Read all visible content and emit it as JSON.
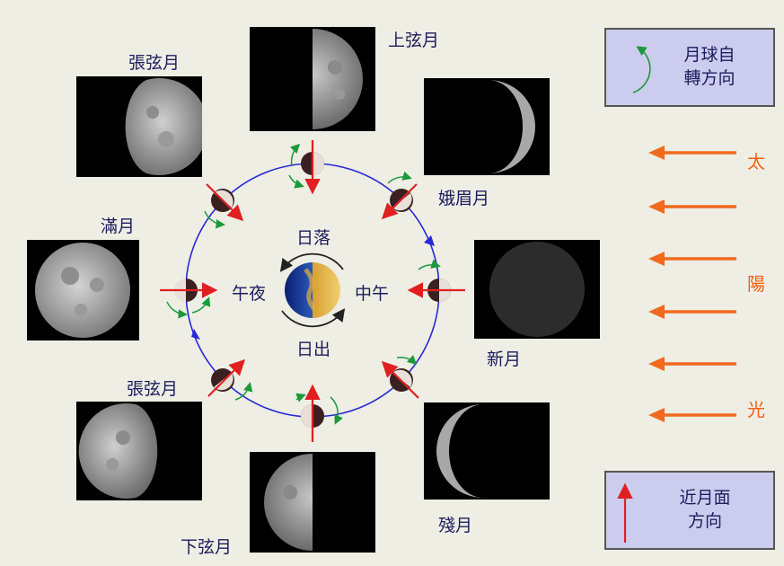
{
  "phases": {
    "first_quarter": "上弦月",
    "waxing_gibbous": "張弦月",
    "waxing_crescent": "娥眉月",
    "full_moon": "滿月",
    "new_moon": "新月",
    "waning_gibbous": "張弦月",
    "waning_crescent": "殘月",
    "last_quarter": "下弦月"
  },
  "earth": {
    "sunset": "日落",
    "sunrise": "日出",
    "noon": "中午",
    "midnight": "午夜"
  },
  "legend": {
    "rotation_line1": "月球自",
    "rotation_line2": "轉方向",
    "near_side_line1": "近月面",
    "near_side_line2": "方向"
  },
  "sunlight": [
    "太",
    "陽",
    "光"
  ],
  "colors": {
    "sunlight_arrow": "#f06a1e",
    "near_side_arrow": "#e02020",
    "rotation_arrow": "#1a9a3a",
    "orbit": "#2828d8",
    "legend_bg": "#ccccee"
  }
}
